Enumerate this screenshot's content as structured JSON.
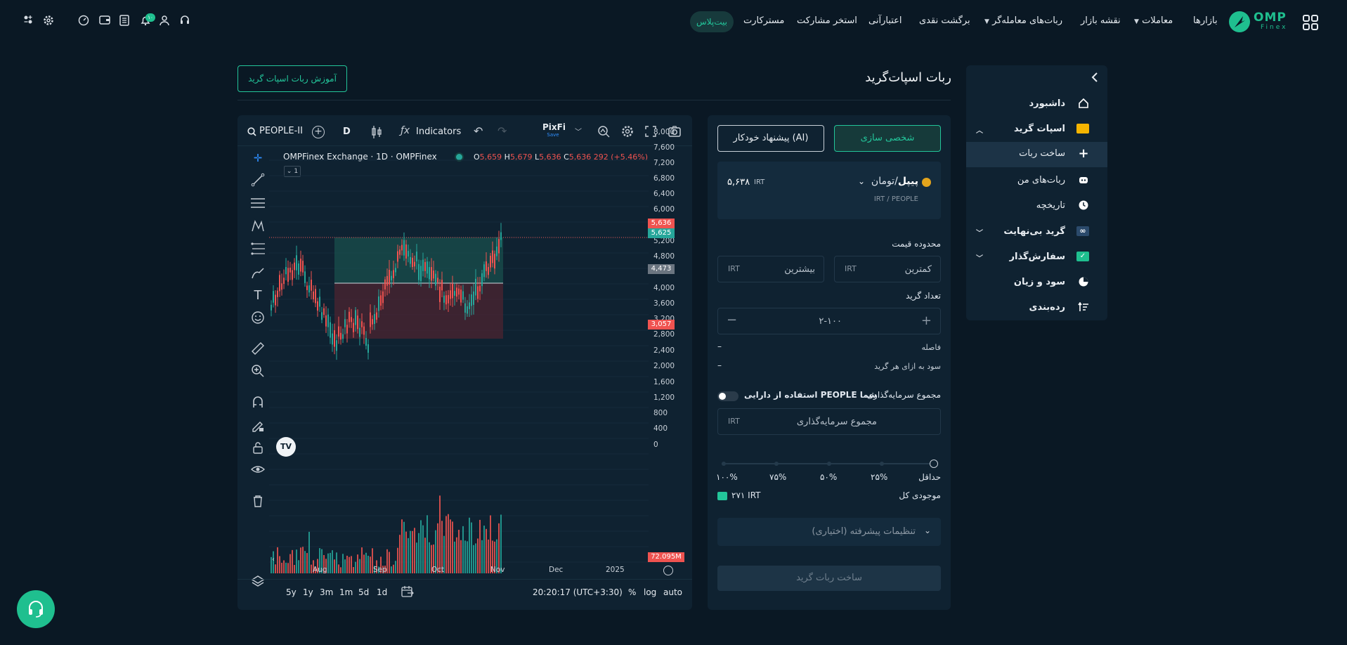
{
  "nav": {
    "items": [
      "بازارها",
      "معاملات",
      "نقشه بازار",
      "ربات‌های معامله‌گر",
      "برگشت نقدی",
      "اعتبارآنی",
      "استخر مشارکت",
      "مسترکارت"
    ],
    "pill": "بیت‌پلاس",
    "logo_text": "OMP",
    "logo_sub": "Finex",
    "notification_count": "۱۰"
  },
  "sidebar": {
    "items": [
      {
        "label": "داشبورد",
        "icon": "home-icon"
      },
      {
        "label": "اسپات گرید",
        "icon": "grid-bot-icon"
      },
      {
        "label": "ساخت ربات",
        "icon": "plus-icon"
      },
      {
        "label": "ربات‌های من",
        "icon": "robot-icon"
      },
      {
        "label": "تاریخچه",
        "icon": "clock-icon"
      },
      {
        "label": "گرید بی‌نهایت",
        "icon": "infinity-icon"
      },
      {
        "label": "سفارش‌گذار",
        "icon": "order-icon"
      },
      {
        "label": "سود و زیان",
        "icon": "pie-icon"
      },
      {
        "label": "رده‌بندی",
        "icon": "ranking-icon"
      }
    ]
  },
  "page": {
    "title": "ربات اسپات‌گرید",
    "tutorial_button": "آموزش ربات اسپات گرید"
  },
  "chart": {
    "symbol": "PEOPLE-II",
    "interval": "D",
    "indicators_label": "Indicators",
    "brand": "PixFi",
    "brand_save": "Save",
    "legend_title": "OMPFinex Exchange · 1D · OMPFinex",
    "ohlc": {
      "o": "5,659",
      "h": "5,679",
      "l": "5,636",
      "c": "5,636",
      "chg": "292 (+5.46%)"
    },
    "collapse_count": "1",
    "price_labels": [
      "8,000",
      "7,600",
      "7,200",
      "6,800",
      "6,400",
      "6,000",
      "5,200",
      "4,800",
      "4,000",
      "3,600",
      "3,200",
      "2,800",
      "2,400",
      "2,000",
      "1,600",
      "1,200",
      "800",
      "400",
      "0"
    ],
    "price_tags": {
      "last_red": "5,636",
      "last_green": "5,625",
      "mid_gray": "4,473",
      "low_red": "3,057",
      "volume_red": "72.095M"
    },
    "time_labels": [
      "Aug",
      "Sep",
      "Oct",
      "Nov",
      "Dec",
      "2025"
    ],
    "ranges": [
      "5y",
      "1y",
      "3m",
      "1m",
      "5d",
      "1d"
    ],
    "clock": "20:20:17 (UTC+3:30)",
    "percent": "%",
    "log": "log",
    "auto": "auto",
    "colors": {
      "up": "#26a69a",
      "down": "#ef5350",
      "bg": "#0f2231"
    }
  },
  "form": {
    "tab_custom": "شخصی سازی",
    "tab_ai": "پیشنهاد خودکار (AI)",
    "pair_name": "پیپل",
    "pair_quote": "/تومان",
    "pair_sub": "IRT / PEOPLE",
    "pair_price": "۵,۶۳۸",
    "pair_unit": "IRT",
    "price_range_label": "محدوده قیمت",
    "min_placeholder": "کمترین",
    "max_placeholder": "بیشترین",
    "unit": "IRT",
    "grid_count_label": "تعداد گرید",
    "grid_count_placeholder": "۲-۱۰۰",
    "spacing_label": "فاصله",
    "spacing_value": "–",
    "profit_label": "سود به ازای هر گرید",
    "profit_value": "–",
    "investment_label": "مجموع سرمایه‌گذاری",
    "use_asset_label": "استفاده از دارایی PEOPLE شما",
    "investment_placeholder": "مجموع سرمایه‌گذاری",
    "slider_labels": [
      "حداقل",
      "۲۵%",
      "۵۰%",
      "۷۵%",
      "۱۰۰%"
    ],
    "balance_label": "موجودی کل",
    "balance_value": "۲۷۱ IRT",
    "advanced_label": "تنظیمات پیشرفته (اختیاری)",
    "submit_label": "ساخت ربات گرید"
  }
}
